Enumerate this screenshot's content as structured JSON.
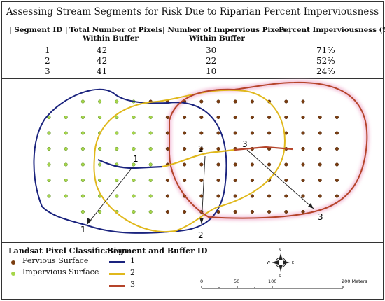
{
  "title": "Assessing Stream Segments for Risk Due to Riparian Percent Imperviousness",
  "table": {
    "headers": [
      "| Segment ID |",
      "Total Number of Pixels",
      "| Number of Impervious Pixels |",
      "Percent Imperviousness (%) |"
    ],
    "subheaders": [
      "Within Buffer",
      "Within Buffer"
    ],
    "rows": [
      {
        "id": "1",
        "total": "42",
        "impervious": "30",
        "percent": "71%"
      },
      {
        "id": "2",
        "total": "42",
        "impervious": "22",
        "percent": "52%"
      },
      {
        "id": "3",
        "total": "41",
        "impervious": "10",
        "percent": "24%"
      }
    ]
  },
  "map": {
    "segment_labels": [
      "1",
      "2",
      "3"
    ],
    "buffer_labels": [
      "1",
      "2",
      "3"
    ]
  },
  "legend": {
    "pixel_title": "Landsat Pixel Classification",
    "pervious": "Pervious Surface",
    "impervious": "Impervious Surface",
    "segment_title": "Segment and Buffer ID",
    "segments": [
      {
        "label": "1",
        "color": "#1a237e"
      },
      {
        "label": "2",
        "color": "#e0b81c"
      },
      {
        "label": "3",
        "color": "#b5442a"
      }
    ]
  },
  "colors": {
    "pervious_dot": "#7a3d10",
    "impervious_dot": "#a6d64a",
    "buffer_glow": "#f4c6dc"
  },
  "north_arrow": {
    "n": "N",
    "s": "S",
    "e": "E",
    "w": "W"
  },
  "scale_bar": {
    "ticks": [
      "0",
      "50",
      "100",
      "200 Meters"
    ]
  }
}
